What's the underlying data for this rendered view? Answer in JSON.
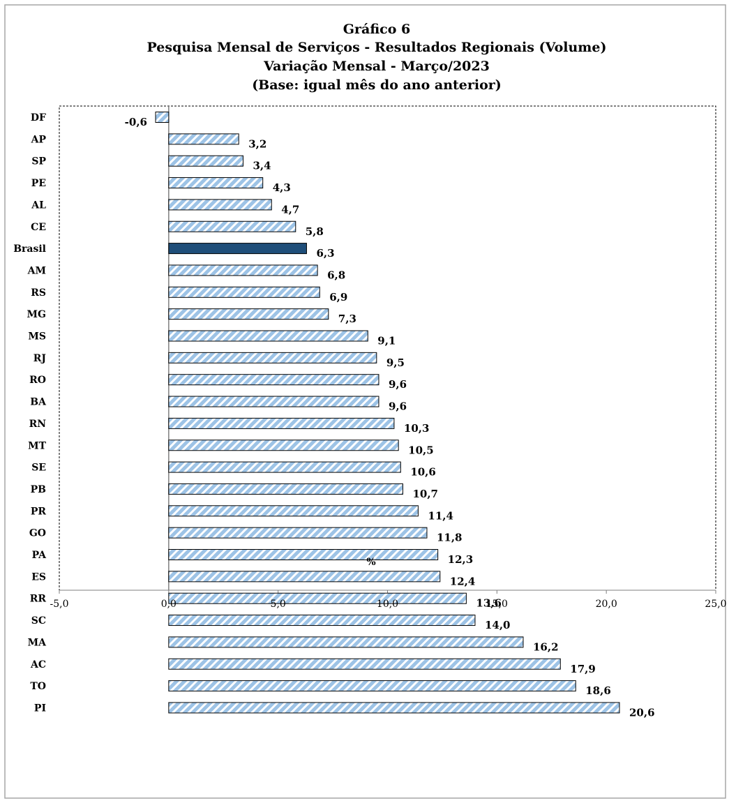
{
  "title_lines": [
    "Gráfico 6",
    "Pesquisa  Mensal de Serviços - Resultados Regionais (Volume)",
    "Variação Mensal - Março/2023",
    "(Base: igual mês do ano anterior)"
  ],
  "colors": {
    "bar_fill": "#9dc3e6",
    "bar_stripe": "#ffffff",
    "highlight_fill": "#1f4e79",
    "bar_stroke": "#000000"
  },
  "chart_data": {
    "type": "bar",
    "orientation": "horizontal",
    "title": "Gráfico 6 Pesquisa  Mensal de Serviços - Resultados Regionais (Volume) Variação Mensal - Março/2023 (Base: igual mês do ano anterior)",
    "categories": [
      "DF",
      "AP",
      "SP",
      "PE",
      "AL",
      "CE",
      "Brasil",
      "AM",
      "RS",
      "MG",
      "MS",
      "RJ",
      "RO",
      "BA",
      "RN",
      "MT",
      "SE",
      "PB",
      "PR",
      "GO",
      "PA",
      "ES",
      "RR",
      "SC",
      "MA",
      "AC",
      "TO",
      "PI"
    ],
    "values": [
      -0.6,
      3.2,
      3.4,
      4.3,
      4.7,
      5.8,
      6.3,
      6.8,
      6.9,
      7.3,
      9.1,
      9.5,
      9.6,
      9.6,
      10.3,
      10.5,
      10.6,
      10.7,
      11.4,
      11.8,
      12.3,
      12.4,
      13.6,
      14.0,
      16.2,
      17.9,
      18.6,
      20.6
    ],
    "value_labels": [
      "-0,6",
      "3,2",
      "3,4",
      "4,3",
      "4,7",
      "5,8",
      "6,3",
      "6,8",
      "6,9",
      "7,3",
      "9,1",
      "9,5",
      "9,6",
      "9,6",
      "10,3",
      "10,5",
      "10,6",
      "10,7",
      "11,4",
      "11,8",
      "12,3",
      "12,4",
      "13,6",
      "14,0",
      "16,2",
      "17,9",
      "18,6",
      "20,6"
    ],
    "highlight": "Brasil",
    "xlabel": "%",
    "ylabel": "",
    "xlim": [
      -5,
      25
    ],
    "xticks": [
      -5,
      0,
      5,
      10,
      15,
      20,
      25
    ],
    "xtick_labels": [
      "-5,0",
      "0,0",
      "5,0",
      "10,0",
      "15,0",
      "20,0",
      "25,0"
    ],
    "grid": false,
    "legend": "none"
  }
}
